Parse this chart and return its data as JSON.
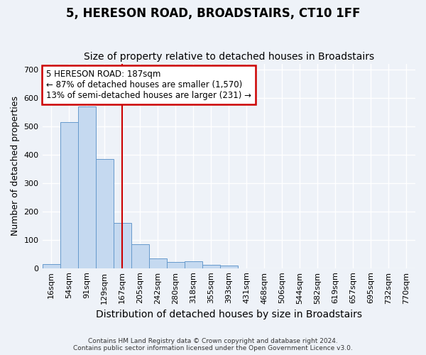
{
  "title": "5, HERESON ROAD, BROADSTAIRS, CT10 1FF",
  "subtitle": "Size of property relative to detached houses in Broadstairs",
  "xlabel": "Distribution of detached houses by size in Broadstairs",
  "ylabel": "Number of detached properties",
  "bar_labels": [
    "16sqm",
    "54sqm",
    "91sqm",
    "129sqm",
    "167sqm",
    "205sqm",
    "242sqm",
    "280sqm",
    "318sqm",
    "355sqm",
    "393sqm",
    "431sqm",
    "468sqm",
    "506sqm",
    "544sqm",
    "582sqm",
    "619sqm",
    "657sqm",
    "695sqm",
    "732sqm",
    "770sqm"
  ],
  "bar_values": [
    15,
    515,
    570,
    385,
    160,
    83,
    35,
    22,
    24,
    12,
    10,
    0,
    0,
    0,
    0,
    0,
    0,
    0,
    0,
    0,
    0
  ],
  "bar_color": "#c5d9f0",
  "bar_edgecolor": "#6699cc",
  "vline_index": 4,
  "vline_color": "#cc0000",
  "ylim": [
    0,
    720
  ],
  "yticks": [
    0,
    100,
    200,
    300,
    400,
    500,
    600,
    700
  ],
  "annotation_text": "5 HERESON ROAD: 187sqm\n← 87% of detached houses are smaller (1,570)\n13% of semi-detached houses are larger (231) →",
  "annotation_box_facecolor": "#ffffff",
  "annotation_box_edgecolor": "#cc0000",
  "footer_line1": "Contains HM Land Registry data © Crown copyright and database right 2024.",
  "footer_line2": "Contains public sector information licensed under the Open Government Licence v3.0.",
  "background_color": "#eef2f8",
  "grid_color": "#ffffff",
  "title_fontsize": 12,
  "subtitle_fontsize": 10,
  "tick_fontsize": 8,
  "ylabel_fontsize": 9,
  "xlabel_fontsize": 10
}
